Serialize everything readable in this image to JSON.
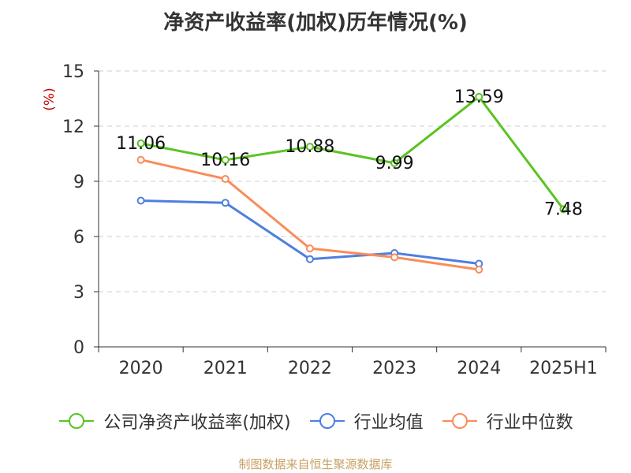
{
  "chart_data": {
    "type": "line",
    "title": "净资产收益率(加权)历年情况(%)",
    "ylabel": "(%)",
    "xlabel": "",
    "categories": [
      "2020",
      "2021",
      "2022",
      "2023",
      "2024",
      "2025H1"
    ],
    "ylim": [
      0,
      15
    ],
    "yticks": [
      0,
      3,
      6,
      9,
      12,
      15
    ],
    "grid": true,
    "legend_position": "bottom",
    "series": [
      {
        "name": "公司净资产收益率(加权)",
        "color": "#5bc322",
        "values": [
          11.06,
          10.16,
          10.88,
          9.99,
          13.59,
          7.48
        ],
        "labels": [
          "11.06",
          "10.16",
          "10.88",
          "9.99",
          "13.59",
          "7.48"
        ]
      },
      {
        "name": "行业均值",
        "color": "#4e7fde",
        "values": [
          7.95,
          7.83,
          4.77,
          5.1,
          4.52,
          null
        ]
      },
      {
        "name": "行业中位数",
        "color": "#fa8c5a",
        "values": [
          10.17,
          9.13,
          5.35,
          4.87,
          4.2,
          null
        ]
      }
    ]
  },
  "source": "制图数据来自恒生聚源数据库",
  "colors": {
    "ylabel": "#cc0000",
    "grid": "#cccccc",
    "axis": "#333333",
    "text": "#333333"
  }
}
